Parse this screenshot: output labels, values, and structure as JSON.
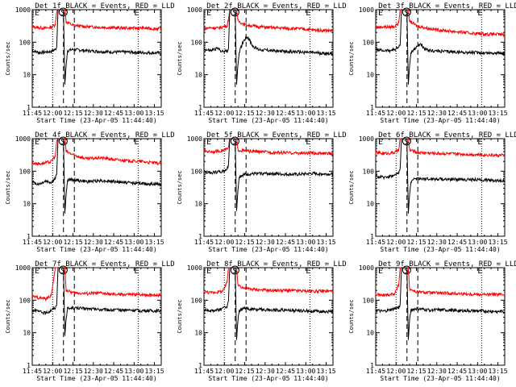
{
  "chart_data": [
    {
      "type": "line",
      "title": "Det 1f BLACK = Events, RED = LLD",
      "xlabel": "Start Time (23-Apr-05 11:44:40)",
      "ylabel": "Counts/sec",
      "xticks": [
        "11:45",
        "12:00",
        "12:15",
        "12:30",
        "12:45",
        "13:00",
        "13:15"
      ],
      "yticks": [
        "1",
        "10",
        "100",
        "1000"
      ],
      "ylim": [
        1,
        1000
      ],
      "xlim_minutes": [
        0,
        95
      ],
      "markers": [
        "E",
        "S",
        "E"
      ],
      "series": [
        {
          "name": "LLD",
          "color": "#ff0000",
          "x": [
            0,
            5,
            10,
            14,
            17,
            18,
            19,
            21,
            22,
            23,
            24,
            25,
            30,
            40,
            50,
            60,
            70,
            80,
            90,
            95
          ],
          "y": [
            300,
            280,
            270,
            290,
            350,
            900,
            1000,
            1000,
            1000,
            1000,
            1000,
            420,
            330,
            300,
            290,
            280,
            270,
            275,
            260,
            260
          ]
        },
        {
          "name": "Events",
          "color": "#000000",
          "x": [
            0,
            5,
            10,
            14,
            17,
            18,
            19,
            21,
            22,
            23,
            24,
            25,
            26,
            30,
            40,
            50,
            60,
            70,
            80,
            90,
            95
          ],
          "y": [
            55,
            48,
            50,
            52,
            60,
            70,
            1000,
            1000,
            1000,
            1000,
            5,
            20,
            55,
            60,
            55,
            52,
            50,
            50,
            48,
            47,
            47
          ]
        }
      ]
    },
    {
      "type": "line",
      "title": "Det 2f BLACK = Events, RED = LLD",
      "xlabel": "Start Time (23-Apr-05 11:44:40)",
      "ylabel": "Counts/sec",
      "xticks": [
        "11:45",
        "12:00",
        "12:15",
        "12:30",
        "12:45",
        "13:00",
        "13:15"
      ],
      "yticks": [
        "1",
        "10",
        "100",
        "1000"
      ],
      "ylim": [
        1,
        1000
      ],
      "xlim_minutes": [
        0,
        95
      ],
      "markers": [
        "E",
        "S",
        "E"
      ],
      "series": [
        {
          "name": "LLD",
          "color": "#ff0000",
          "x": [
            0,
            5,
            10,
            14,
            17,
            18,
            19,
            21,
            22,
            23,
            24,
            25,
            30,
            40,
            50,
            60,
            70,
            80,
            90,
            95
          ],
          "y": [
            260,
            280,
            270,
            300,
            320,
            500,
            1000,
            1000,
            1000,
            1000,
            1000,
            450,
            350,
            300,
            280,
            270,
            260,
            240,
            230,
            230
          ]
        },
        {
          "name": "Events",
          "color": "#000000",
          "x": [
            0,
            5,
            10,
            14,
            17,
            18,
            19,
            21,
            22,
            23,
            24,
            25,
            26,
            29,
            32,
            36,
            40,
            50,
            60,
            70,
            80,
            90,
            95
          ],
          "y": [
            60,
            55,
            65,
            50,
            55,
            60,
            1000,
            1000,
            1000,
            1000,
            5,
            20,
            50,
            110,
            150,
            75,
            60,
            55,
            52,
            50,
            48,
            45,
            45
          ]
        }
      ]
    },
    {
      "type": "line",
      "title": "Det 3f BLACK = Events, RED = LLD",
      "xlabel": "Start Time (23-Apr-05 11:44:40)",
      "ylabel": "Counts/sec",
      "xticks": [
        "11:45",
        "12:00",
        "12:15",
        "12:30",
        "12:45",
        "13:00",
        "13:15"
      ],
      "yticks": [
        "1",
        "10",
        "100",
        "1000"
      ],
      "ylim": [
        1,
        1000
      ],
      "xlim_minutes": [
        0,
        95
      ],
      "markers": [
        "E",
        "S",
        "E"
      ],
      "series": [
        {
          "name": "LLD",
          "color": "#ff0000",
          "x": [
            0,
            5,
            10,
            14,
            17,
            18,
            19,
            21,
            22,
            23,
            24,
            25,
            30,
            40,
            50,
            60,
            70,
            80,
            90,
            95
          ],
          "y": [
            280,
            300,
            290,
            310,
            400,
            1000,
            1000,
            1000,
            1000,
            1000,
            1000,
            450,
            320,
            260,
            230,
            210,
            190,
            180,
            175,
            170
          ]
        },
        {
          "name": "Events",
          "color": "#000000",
          "x": [
            0,
            5,
            10,
            14,
            17,
            18,
            19,
            21,
            22,
            23,
            24,
            25,
            26,
            30,
            33,
            36,
            40,
            50,
            60,
            70,
            80,
            90,
            95
          ],
          "y": [
            60,
            55,
            55,
            60,
            70,
            80,
            1000,
            1000,
            1000,
            1000,
            5,
            20,
            50,
            70,
            90,
            60,
            55,
            52,
            50,
            48,
            47,
            46,
            46
          ]
        }
      ]
    },
    {
      "type": "line",
      "title": "Det 4f BLACK = Events, RED = LLD",
      "xlabel": "Start Time (23-Apr-05 11:44:40)",
      "ylabel": "Counts/sec",
      "xticks": [
        "11:45",
        "12:00",
        "12:15",
        "12:30",
        "12:45",
        "13:00",
        "13:15"
      ],
      "yticks": [
        "1",
        "10",
        "100",
        "1000"
      ],
      "ylim": [
        1,
        1000
      ],
      "xlim_minutes": [
        0,
        95
      ],
      "markers": [
        "E",
        "S",
        "E"
      ],
      "series": [
        {
          "name": "LLD",
          "color": "#ff0000",
          "x": [
            0,
            5,
            10,
            14,
            17,
            18,
            19,
            21,
            22,
            23,
            24,
            25,
            30,
            40,
            50,
            60,
            70,
            80,
            90,
            95
          ],
          "y": [
            180,
            170,
            180,
            200,
            300,
            800,
            1000,
            1000,
            1000,
            1000,
            1000,
            400,
            320,
            240,
            260,
            230,
            210,
            200,
            180,
            170
          ]
        },
        {
          "name": "Events",
          "color": "#000000",
          "x": [
            0,
            5,
            10,
            14,
            17,
            18,
            19,
            21,
            22,
            23,
            24,
            25,
            26,
            30,
            40,
            50,
            60,
            70,
            80,
            90,
            95
          ],
          "y": [
            45,
            40,
            50,
            45,
            60,
            80,
            1000,
            1000,
            1000,
            1000,
            5,
            20,
            55,
            55,
            48,
            52,
            48,
            45,
            42,
            40,
            40
          ]
        }
      ]
    },
    {
      "type": "line",
      "title": "Det 5f BLACK = Events, RED = LLD",
      "xlabel": "Start Time (23-Apr-05 11:44:40)",
      "ylabel": "Counts/sec",
      "xticks": [
        "11:45",
        "12:00",
        "12:15",
        "12:30",
        "12:45",
        "13:00",
        "13:15"
      ],
      "yticks": [
        "1",
        "10",
        "100",
        "1000"
      ],
      "ylim": [
        1,
        1000
      ],
      "xlim_minutes": [
        0,
        95
      ],
      "markers": [
        "E",
        "S",
        "E"
      ],
      "series": [
        {
          "name": "LLD",
          "color": "#ff0000",
          "x": [
            0,
            5,
            10,
            14,
            17,
            18,
            19,
            21,
            22,
            23,
            24,
            25,
            30,
            40,
            50,
            60,
            70,
            80,
            90,
            95
          ],
          "y": [
            420,
            400,
            410,
            440,
            470,
            520,
            1000,
            1000,
            1000,
            1000,
            1000,
            450,
            420,
            400,
            380,
            370,
            360,
            360,
            350,
            350
          ]
        },
        {
          "name": "Events",
          "color": "#000000",
          "x": [
            0,
            5,
            10,
            14,
            17,
            18,
            19,
            21,
            22,
            23,
            24,
            25,
            26,
            30,
            40,
            50,
            60,
            70,
            80,
            90,
            95
          ],
          "y": [
            95,
            90,
            95,
            100,
            120,
            150,
            1000,
            1000,
            1000,
            1000,
            6,
            25,
            70,
            80,
            85,
            85,
            80,
            80,
            85,
            82,
            82
          ]
        }
      ]
    },
    {
      "type": "line",
      "title": "Det 6f BLACK = Events, RED = LLD",
      "xlabel": "Start Time (23-Apr-05 11:44:40)",
      "ylabel": "Counts/sec",
      "xticks": [
        "11:45",
        "12:00",
        "12:15",
        "12:30",
        "12:45",
        "13:00",
        "13:15"
      ],
      "yticks": [
        "1",
        "10",
        "100",
        "1000"
      ],
      "ylim": [
        1,
        1000
      ],
      "xlim_minutes": [
        0,
        95
      ],
      "markers": [
        "E",
        "S",
        "E"
      ],
      "series": [
        {
          "name": "LLD",
          "color": "#ff0000",
          "x": [
            0,
            5,
            10,
            14,
            17,
            18,
            19,
            21,
            22,
            23,
            24,
            25,
            30,
            40,
            50,
            60,
            70,
            80,
            90,
            95
          ],
          "y": [
            380,
            350,
            360,
            380,
            450,
            1000,
            1000,
            1000,
            1000,
            1000,
            1000,
            450,
            380,
            360,
            350,
            340,
            330,
            320,
            310,
            310
          ]
        },
        {
          "name": "Events",
          "color": "#000000",
          "x": [
            0,
            5,
            10,
            14,
            17,
            18,
            19,
            21,
            22,
            23,
            24,
            25,
            26,
            30,
            40,
            50,
            60,
            70,
            80,
            90,
            95
          ],
          "y": [
            70,
            65,
            70,
            75,
            90,
            120,
            1000,
            1000,
            1000,
            1000,
            5,
            20,
            50,
            60,
            58,
            57,
            56,
            55,
            54,
            52,
            52
          ]
        }
      ]
    },
    {
      "type": "line",
      "title": "Det 7f BLACK = Events, RED = LLD",
      "xlabel": "Start Time (23-Apr-05 11:44:40)",
      "ylabel": "Counts/sec",
      "xticks": [
        "11:45",
        "12:00",
        "12:15",
        "12:30",
        "12:45",
        "13:00",
        "13:15"
      ],
      "yticks": [
        "1",
        "10",
        "100",
        "1000"
      ],
      "ylim": [
        1,
        1000
      ],
      "xlim_minutes": [
        0,
        95
      ],
      "markers": [
        "E",
        "S",
        "E"
      ],
      "series": [
        {
          "name": "LLD",
          "color": "#ff0000",
          "x": [
            0,
            5,
            10,
            14,
            17,
            18,
            19,
            21,
            22,
            23,
            24,
            25,
            30,
            40,
            50,
            60,
            70,
            80,
            90,
            95
          ],
          "y": [
            130,
            120,
            110,
            140,
            1000,
            1000,
            1000,
            1000,
            1000,
            1000,
            1000,
            200,
            170,
            160,
            165,
            150,
            150,
            150,
            145,
            145
          ]
        },
        {
          "name": "Events",
          "color": "#000000",
          "x": [
            0,
            5,
            10,
            14,
            17,
            18,
            19,
            21,
            22,
            23,
            24,
            25,
            26,
            30,
            40,
            50,
            60,
            70,
            80,
            90,
            95
          ],
          "y": [
            50,
            45,
            40,
            50,
            60,
            70,
            1000,
            1000,
            1000,
            1000,
            8,
            30,
            55,
            58,
            55,
            52,
            50,
            50,
            48,
            47,
            47
          ]
        }
      ]
    },
    {
      "type": "line",
      "title": "Det 8f BLACK = Events, RED = LLD",
      "xlabel": "Start Time (23-Apr-05 11:44:40)",
      "ylabel": "Counts/sec",
      "xticks": [
        "11:45",
        "12:00",
        "12:15",
        "12:30",
        "12:45",
        "13:00",
        "13:15"
      ],
      "yticks": [
        "1",
        "10",
        "100",
        "1000"
      ],
      "ylim": [
        1,
        1000
      ],
      "xlim_minutes": [
        0,
        95
      ],
      "markers": [
        "E",
        "S",
        "E"
      ],
      "series": [
        {
          "name": "LLD",
          "color": "#ff0000",
          "x": [
            0,
            5,
            10,
            14,
            17,
            18,
            19,
            21,
            22,
            23,
            24,
            25,
            30,
            40,
            50,
            60,
            70,
            80,
            90,
            95
          ],
          "y": [
            180,
            170,
            180,
            190,
            350,
            1000,
            1000,
            1000,
            1000,
            1000,
            1000,
            300,
            230,
            210,
            200,
            200,
            195,
            190,
            190,
            190
          ]
        },
        {
          "name": "Events",
          "color": "#000000",
          "x": [
            0,
            5,
            10,
            14,
            17,
            18,
            19,
            21,
            22,
            23,
            24,
            25,
            26,
            30,
            40,
            50,
            60,
            70,
            80,
            90,
            95
          ],
          "y": [
            50,
            48,
            50,
            55,
            65,
            90,
            1000,
            1000,
            1000,
            1000,
            6,
            25,
            50,
            55,
            52,
            50,
            50,
            48,
            46,
            45,
            45
          ]
        }
      ]
    },
    {
      "type": "line",
      "title": "Det 9f BLACK = Events, RED = LLD",
      "xlabel": "Start Time (23-Apr-05 11:44:40)",
      "ylabel": "Counts/sec",
      "xticks": [
        "11:45",
        "12:00",
        "12:15",
        "12:30",
        "12:45",
        "13:00",
        "13:15"
      ],
      "yticks": [
        "1",
        "10",
        "100",
        "1000"
      ],
      "ylim": [
        1,
        1000
      ],
      "xlim_minutes": [
        0,
        95
      ],
      "markers": [
        "E",
        "S",
        "E"
      ],
      "series": [
        {
          "name": "LLD",
          "color": "#ff0000",
          "x": [
            0,
            5,
            10,
            14,
            17,
            18,
            19,
            21,
            22,
            23,
            24,
            25,
            30,
            40,
            50,
            60,
            70,
            80,
            90,
            95
          ],
          "y": [
            150,
            140,
            150,
            160,
            300,
            1000,
            1000,
            1000,
            1000,
            1000,
            1000,
            220,
            180,
            170,
            165,
            160,
            155,
            150,
            150,
            150
          ]
        },
        {
          "name": "Events",
          "color": "#000000",
          "x": [
            0,
            5,
            10,
            14,
            17,
            18,
            19,
            21,
            22,
            23,
            24,
            25,
            26,
            30,
            40,
            50,
            60,
            70,
            80,
            90,
            95
          ],
          "y": [
            50,
            45,
            50,
            55,
            60,
            75,
            1000,
            1000,
            1000,
            1000,
            6,
            25,
            50,
            55,
            50,
            50,
            48,
            47,
            46,
            45,
            45
          ]
        }
      ]
    }
  ]
}
